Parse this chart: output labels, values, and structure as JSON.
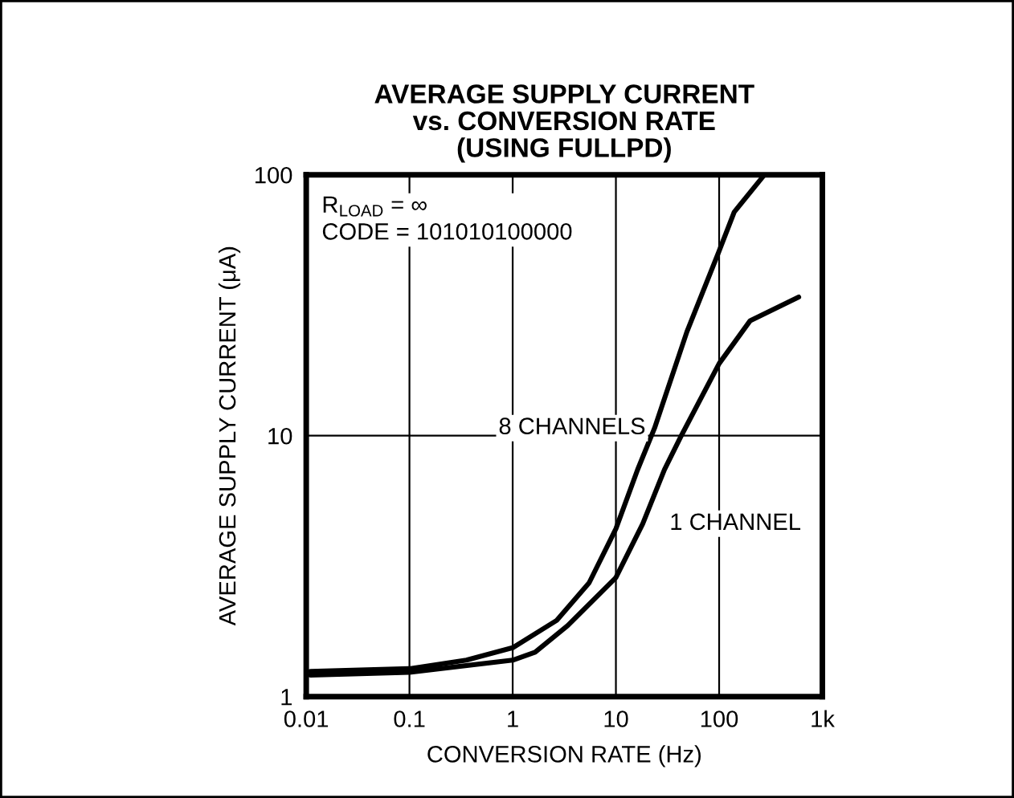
{
  "chart_data": {
    "type": "line",
    "title": "AVERAGE SUPPLY CURRENT\nvs. CONVERSION RATE\n(USING FULLPD)",
    "xlabel": "CONVERSION RATE (Hz)",
    "ylabel": "AVERAGE SUPPLY CURRENT (μA)",
    "log": "xy",
    "xlim": [
      0.01,
      1000
    ],
    "ylim": [
      1,
      100
    ],
    "xticks": [
      0.01,
      0.1,
      1,
      10,
      100,
      {
        "value": 1000,
        "label": "1k"
      }
    ],
    "yticks": [
      1,
      10,
      100
    ],
    "grid": true,
    "legend": false,
    "line_style": "solid",
    "marker": "none",
    "annotations": [
      "R$_{LOAD}$ = ∞\nCODE = 101010100000"
    ],
    "series": [
      {
        "name": "8 CHANNELS",
        "color": "#000000",
        "x": [
          0.011,
          0.1,
          0.356,
          1,
          2.67,
          5.5,
          10,
          16.2,
          23.7,
          48.7,
          100,
          140,
          275
        ],
        "values": [
          1.25,
          1.28,
          1.38,
          1.54,
          1.96,
          2.73,
          4.4,
          7.4,
          10.7,
          25,
          51,
          72,
          100
        ]
      },
      {
        "name": "1 CHANNEL",
        "color": "#000000",
        "x": [
          0.011,
          0.1,
          1,
          1.65,
          3.4,
          10,
          18.2,
          29.5,
          43,
          100,
          200,
          590
        ],
        "values": [
          1.21,
          1.24,
          1.38,
          1.48,
          1.87,
          2.86,
          4.6,
          7.4,
          10,
          18.9,
          27.6,
          34
        ]
      }
    ]
  }
}
